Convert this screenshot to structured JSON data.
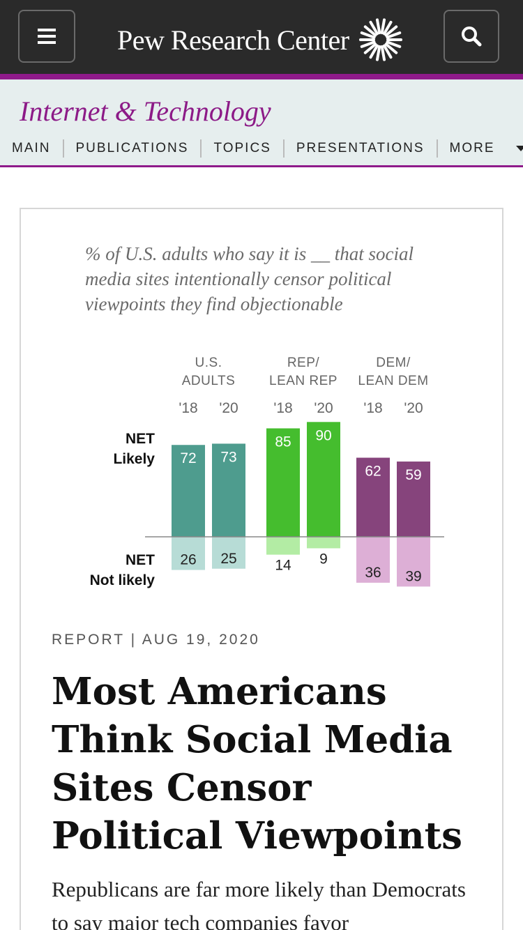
{
  "header": {
    "brand": "Pew Research Center",
    "menu_icon": "hamburger-menu-icon",
    "search_icon": "search-icon",
    "logo_icon": "sunburst-logo-icon"
  },
  "subnav": {
    "section_title": "Internet & Technology",
    "items": [
      "MAIN",
      "PUBLICATIONS",
      "TOPICS",
      "PRESENTATIONS",
      "MORE"
    ]
  },
  "colors": {
    "topbar": "#2a2a2a",
    "accent": "#8f1a8a",
    "subnav_bg": "#e6eeee",
    "teal": "#4e9c8e",
    "teal_light": "#b7dcd6",
    "green": "#45bd2e",
    "green_light": "#b3eca4",
    "purple": "#86447c",
    "purple_light": "#ddafd6"
  },
  "chart_data": {
    "type": "bar",
    "subtitle": "% of U.S. adults who say it is __ that social media sites intentionally censor political viewpoints they find objectionable",
    "groups": [
      {
        "label": "U.S. ADULTS",
        "years": [
          "'18",
          "'20"
        ],
        "likely": [
          72,
          73
        ],
        "not_likely": [
          26,
          25
        ],
        "color": "#4e9c8e",
        "light": "#b7dcd6"
      },
      {
        "label": "REP/ LEAN REP",
        "years": [
          "'18",
          "'20"
        ],
        "likely": [
          85,
          90
        ],
        "not_likely": [
          14,
          9
        ],
        "color": "#45bd2e",
        "light": "#b3eca4"
      },
      {
        "label": "DEM/ LEAN DEM",
        "years": [
          "'18",
          "'20"
        ],
        "likely": [
          62,
          59
        ],
        "not_likely": [
          36,
          39
        ],
        "color": "#86447c",
        "light": "#ddafd6"
      }
    ],
    "row_labels": {
      "likely": "NET Likely",
      "not_likely": "NET Not likely"
    }
  },
  "article": {
    "meta": "REPORT | AUG 19, 2020",
    "headline": "Most Americans Think Social Media Sites Censor Political Viewpoints",
    "dek": "Republicans are far more likely than Democrats to say major tech companies favor"
  }
}
